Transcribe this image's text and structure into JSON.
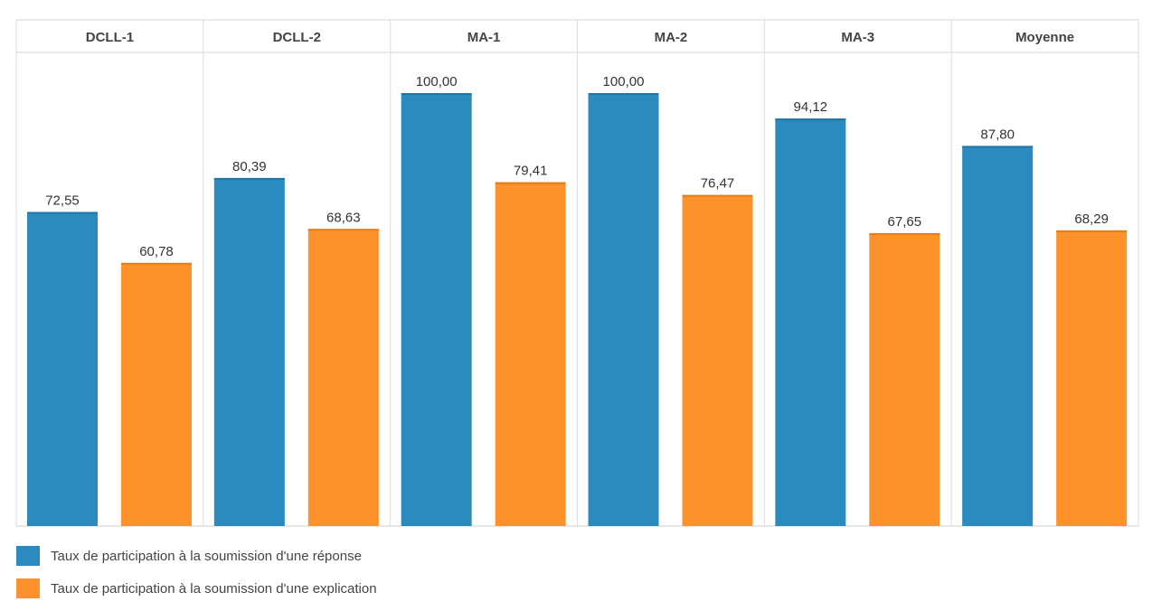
{
  "chart_data": {
    "type": "bar",
    "categories": [
      "DCLL-1",
      "DCLL-2",
      "MA-1",
      "MA-2",
      "MA-3",
      "Moyenne"
    ],
    "series": [
      {
        "name": "Taux de participation à la soumission d'une réponse",
        "values": [
          72.55,
          80.39,
          100.0,
          100.0,
          94.12,
          87.8
        ],
        "labels": [
          "72,55",
          "80,39",
          "100,00",
          "100,00",
          "94,12",
          "87,80"
        ],
        "color": "#2b8bbf"
      },
      {
        "name": "Taux de participation à la soumission d'une explication",
        "values": [
          60.78,
          68.63,
          79.41,
          76.47,
          67.65,
          68.29
        ],
        "labels": [
          "60,78",
          "68,63",
          "79,41",
          "76,47",
          "67,65",
          "68,29"
        ],
        "color": "#fd922c"
      }
    ],
    "ylim": [
      0,
      100
    ],
    "grid": false,
    "legend_position": "bottom-left"
  }
}
